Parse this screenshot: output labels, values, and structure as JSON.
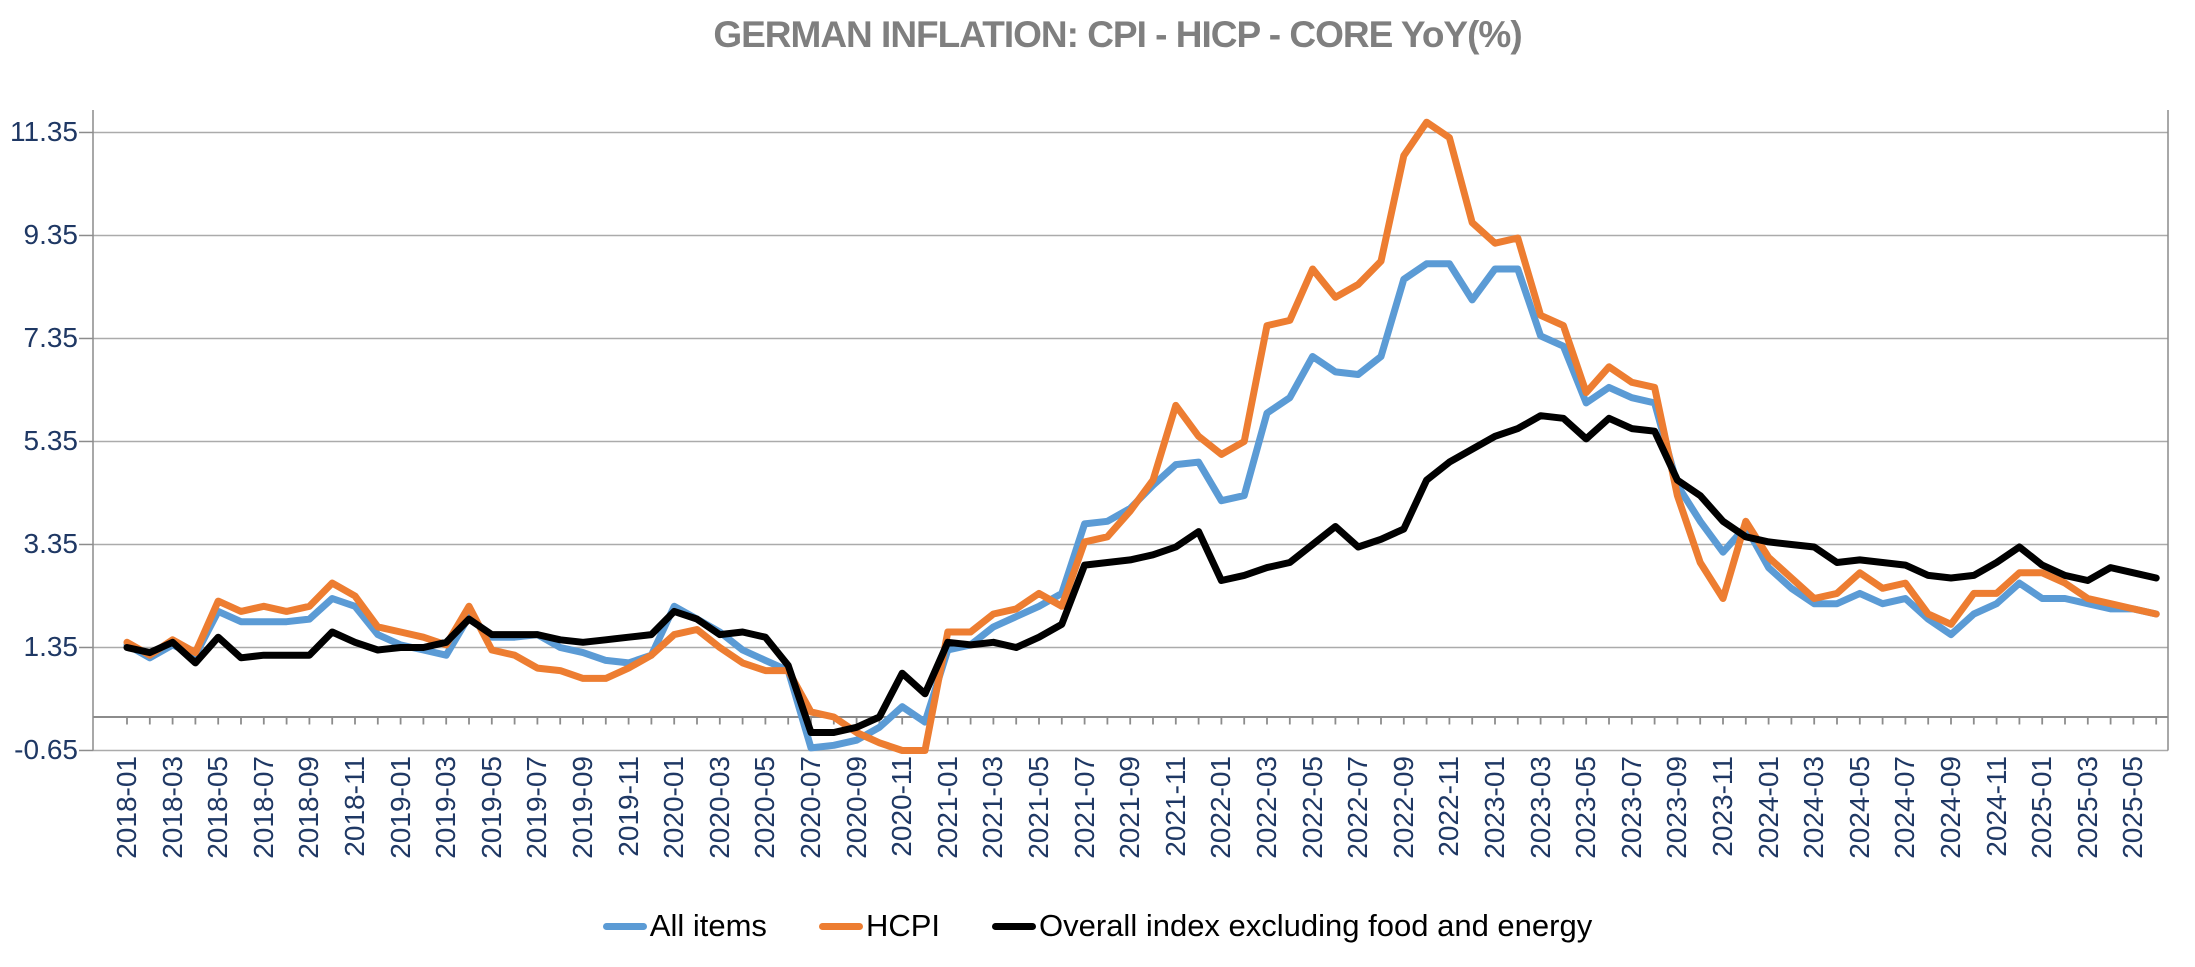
{
  "title": "GERMAN INFLATION: CPI - HICP - CORE YoY(%)",
  "colors": {
    "title_text": "#7F7F7F",
    "axis_text": "#1F3864",
    "gridline": "#ABABAB",
    "axis_line": "#8C8C8C",
    "series_all_items": "#5B9BD5",
    "series_hcpi": "#ED7D31",
    "series_core": "#000000",
    "legend_text": "#000000",
    "background": "#FFFFFF"
  },
  "chart_data": {
    "type": "line",
    "title": "GERMAN INFLATION: CPI - HICP - CORE YoY(%)",
    "xlabel": "",
    "ylabel": "",
    "x_start": "2018-01",
    "x_end": "2025-06",
    "x_frequency": "monthly",
    "ylim": [
      -0.65,
      11.79
    ],
    "y_ticks": [
      -0.65,
      1.35,
      3.35,
      5.35,
      7.35,
      9.35,
      11.35
    ],
    "grid": "horizontal",
    "legend_position": "bottom",
    "x_tick_labels": [
      "2018-01",
      "2018-03",
      "2018-05",
      "2018-07",
      "2018-09",
      "2018-11",
      "2019-01",
      "2019-03",
      "2019-05",
      "2019-07",
      "2019-09",
      "2019-11",
      "2020-01",
      "2020-03",
      "2020-05",
      "2020-07",
      "2020-09",
      "2020-11",
      "2021-01",
      "2021-03",
      "2021-05",
      "2021-07",
      "2021-09",
      "2021-11",
      "2022-01",
      "2022-03",
      "2022-05",
      "2022-07",
      "2022-09",
      "2022-11",
      "2023-01",
      "2023-03",
      "2023-05",
      "2023-07",
      "2023-09",
      "2023-11",
      "2024-01",
      "2024-03",
      "2024-05",
      "2024-07",
      "2024-09",
      "2024-11",
      "2025-01",
      "2025-03",
      "2025-05"
    ],
    "series": [
      {
        "name": "All items",
        "color": "#5B9BD5",
        "values": [
          1.4,
          1.15,
          1.4,
          1.2,
          2.05,
          1.85,
          1.85,
          1.85,
          1.9,
          2.3,
          2.15,
          1.6,
          1.4,
          1.3,
          1.2,
          1.95,
          1.55,
          1.55,
          1.6,
          1.35,
          1.25,
          1.1,
          1.05,
          1.2,
          2.15,
          1.9,
          1.65,
          1.3,
          1.1,
          0.9,
          -0.6,
          -0.55,
          -0.45,
          -0.2,
          0.2,
          -0.1,
          1.3,
          1.4,
          1.75,
          1.95,
          2.15,
          2.4,
          3.75,
          3.8,
          4.05,
          4.5,
          4.9,
          4.95,
          4.2,
          4.3,
          5.9,
          6.2,
          7.0,
          6.7,
          6.65,
          7.0,
          8.5,
          8.8,
          8.8,
          8.1,
          8.7,
          8.7,
          7.4,
          7.2,
          6.1,
          6.4,
          6.2,
          6.1,
          4.5,
          3.8,
          3.2,
          3.7,
          2.9,
          2.5,
          2.2,
          2.2,
          2.4,
          2.2,
          2.3,
          1.9,
          1.6,
          2.0,
          2.2,
          2.6,
          2.3,
          2.3,
          2.2,
          2.1,
          2.1,
          2.0
        ]
      },
      {
        "name": "HCPI",
        "color": "#ED7D31",
        "values": [
          1.45,
          1.2,
          1.5,
          1.25,
          2.25,
          2.05,
          2.15,
          2.05,
          2.15,
          2.6,
          2.35,
          1.75,
          1.65,
          1.55,
          1.4,
          2.15,
          1.3,
          1.2,
          0.95,
          0.9,
          0.75,
          0.75,
          0.95,
          1.2,
          1.6,
          1.7,
          1.35,
          1.05,
          0.9,
          0.9,
          0.1,
          0.0,
          -0.3,
          -0.5,
          -0.7,
          -0.7,
          1.65,
          1.65,
          2.0,
          2.1,
          2.4,
          2.15,
          3.4,
          3.5,
          4.0,
          4.6,
          6.05,
          5.45,
          5.1,
          5.35,
          7.6,
          7.7,
          8.7,
          8.15,
          8.4,
          8.85,
          10.9,
          11.55,
          11.25,
          9.6,
          9.2,
          9.3,
          7.8,
          7.6,
          6.3,
          6.8,
          6.5,
          6.4,
          4.3,
          3.0,
          2.3,
          3.8,
          3.1,
          2.7,
          2.3,
          2.4,
          2.8,
          2.5,
          2.6,
          2.0,
          1.8,
          2.4,
          2.4,
          2.8,
          2.8,
          2.6,
          2.3,
          2.2,
          2.1,
          2.0
        ]
      },
      {
        "name": "Overall index excluding food and energy",
        "color": "#000000",
        "values": [
          1.35,
          1.25,
          1.45,
          1.05,
          1.55,
          1.15,
          1.2,
          1.2,
          1.2,
          1.65,
          1.45,
          1.3,
          1.35,
          1.35,
          1.45,
          1.9,
          1.6,
          1.6,
          1.6,
          1.5,
          1.45,
          1.5,
          1.55,
          1.6,
          2.05,
          1.9,
          1.6,
          1.65,
          1.55,
          1.0,
          -0.3,
          -0.3,
          -0.2,
          0.0,
          0.85,
          0.45,
          1.45,
          1.4,
          1.45,
          1.35,
          1.55,
          1.8,
          2.95,
          3.0,
          3.05,
          3.15,
          3.3,
          3.6,
          2.65,
          2.75,
          2.9,
          3.0,
          3.35,
          3.7,
          3.3,
          3.45,
          3.65,
          4.6,
          4.95,
          5.2,
          5.45,
          5.6,
          5.85,
          5.8,
          5.4,
          5.8,
          5.6,
          5.55,
          4.6,
          4.3,
          3.8,
          3.5,
          3.4,
          3.35,
          3.3,
          3.0,
          3.05,
          3.0,
          2.95,
          2.75,
          2.7,
          2.75,
          3.0,
          3.3,
          2.95,
          2.75,
          2.65,
          2.9,
          2.8,
          2.7
        ]
      }
    ]
  },
  "legend": {
    "items": [
      {
        "label": "All items"
      },
      {
        "label": "HCPI"
      },
      {
        "label": "Overall index excluding food and energy"
      }
    ]
  }
}
